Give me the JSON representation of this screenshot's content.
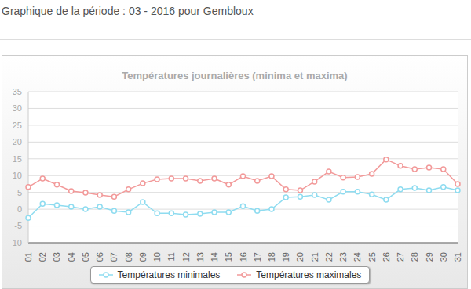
{
  "header": "Graphique de la période : 03 - 2016 pour Gembloux",
  "chart_data": {
    "type": "line",
    "title": "Températures journalières (minima et maxima)",
    "categories": [
      "01",
      "02",
      "03",
      "04",
      "05",
      "06",
      "07",
      "08",
      "09",
      "10",
      "11",
      "12",
      "13",
      "14",
      "15",
      "16",
      "17",
      "18",
      "19",
      "20",
      "21",
      "22",
      "23",
      "24",
      "25",
      "26",
      "27",
      "28",
      "29",
      "30",
      "31"
    ],
    "series": [
      {
        "name": "Températures minimales",
        "color": "#8fdcf0",
        "marker": "circle",
        "values": [
          -2.6,
          1.6,
          1.2,
          0.7,
          0,
          0.7,
          -0.5,
          -0.9,
          2.1,
          -1.2,
          -1.2,
          -1.6,
          -1.4,
          -0.9,
          -0.9,
          0.9,
          -0.5,
          0,
          3.5,
          3.7,
          4.2,
          2.8,
          5.2,
          5.2,
          4.4,
          2.8,
          5.9,
          6.3,
          5.6,
          6.6,
          5.6
        ]
      },
      {
        "name": "Températures maximales",
        "color": "#f29a9a",
        "marker": "circle",
        "values": [
          6.6,
          9.1,
          7.3,
          5.4,
          4.9,
          4.2,
          3.7,
          5.9,
          7.7,
          8.9,
          9.1,
          9.1,
          8.4,
          9.1,
          7.3,
          9.8,
          8.4,
          9.8,
          5.9,
          5.6,
          8.2,
          11.2,
          9.4,
          9.6,
          10.5,
          14.8,
          12.9,
          11.9,
          12.4,
          11.9,
          7.5
        ]
      }
    ],
    "ylim": [
      -10,
      35
    ],
    "yticks": [
      -10,
      -5,
      0,
      5,
      10,
      15,
      20,
      25,
      30,
      35
    ],
    "grid": true,
    "legend": "bottom"
  }
}
